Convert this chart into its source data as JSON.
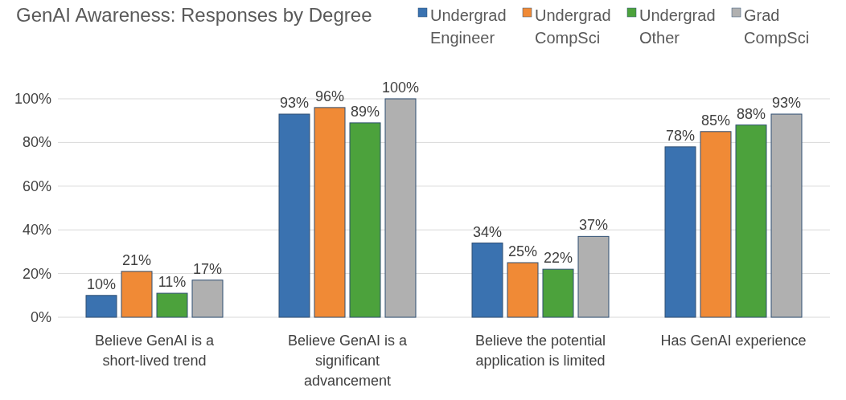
{
  "chart_data": {
    "type": "bar",
    "title": "GenAI Awareness: Responses by Degree",
    "categories": [
      "Believe GenAI is a short-lived trend",
      "Believe GenAI is a significant advancement",
      "Believe the potential application is limited",
      "Has GenAI experience"
    ],
    "series": [
      {
        "name": "Undergrad Engineer",
        "color": "#3a72b0",
        "values": [
          10,
          93,
          34,
          78
        ],
        "value_labels": [
          "10%",
          "93%",
          "34%",
          "78%"
        ]
      },
      {
        "name": "Undergrad CompSci",
        "color": "#f08a36",
        "values": [
          21,
          96,
          25,
          85
        ],
        "value_labels": [
          "21%",
          "96%",
          "25%",
          "85%"
        ]
      },
      {
        "name": "Undergrad Other",
        "color": "#4ca23c",
        "values": [
          11,
          89,
          22,
          88
        ],
        "value_labels": [
          "11%",
          "89%",
          "22%",
          "88%"
        ]
      },
      {
        "name": "Grad CompSci",
        "color": "#b0b0b0",
        "values": [
          17,
          100,
          37,
          93
        ],
        "value_labels": [
          "17%",
          "100%",
          "37%",
          "93%"
        ]
      }
    ],
    "ylim": [
      0,
      100
    ],
    "yticks": [
      {
        "value": 0,
        "label": "0%"
      },
      {
        "value": 20,
        "label": "20%"
      },
      {
        "value": 40,
        "label": "40%"
      },
      {
        "value": 60,
        "label": "60%"
      },
      {
        "value": 80,
        "label": "80%"
      },
      {
        "value": 100,
        "label": "100%"
      }
    ],
    "grid": "y",
    "legend": "top right"
  }
}
